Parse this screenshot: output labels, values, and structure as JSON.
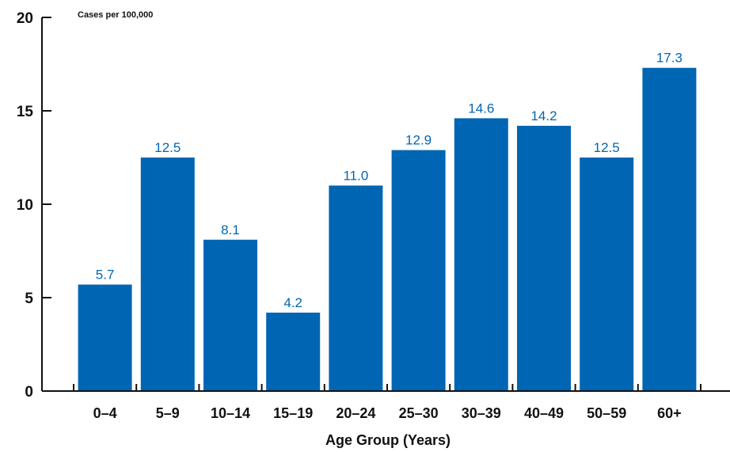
{
  "chart_data": {
    "type": "bar",
    "categories": [
      "0–4",
      "5–9",
      "10–14",
      "15–19",
      "20–24",
      "25–30",
      "30–39",
      "40–49",
      "50–59",
      "60+"
    ],
    "values": [
      5.7,
      12.5,
      8.1,
      4.2,
      11.0,
      12.9,
      14.6,
      14.2,
      12.5,
      17.3
    ],
    "data_labels": [
      "5.7",
      "12.5",
      "8.1",
      "4.2",
      "11.0",
      "12.9",
      "14.6",
      "14.2",
      "12.5",
      "17.3"
    ],
    "ylabel": "Cases per 100,000",
    "xlabel": "Age Group (Years)",
    "ylim": [
      0,
      20
    ],
    "yticks": [
      0,
      5,
      10,
      15,
      20
    ],
    "ytick_labels": [
      "0",
      "5",
      "10",
      "15",
      "20"
    ],
    "grid": false,
    "legend": "none",
    "colors": {
      "bar": "#0066b3",
      "data_label": "#0066b3",
      "axis": "#111111"
    }
  }
}
